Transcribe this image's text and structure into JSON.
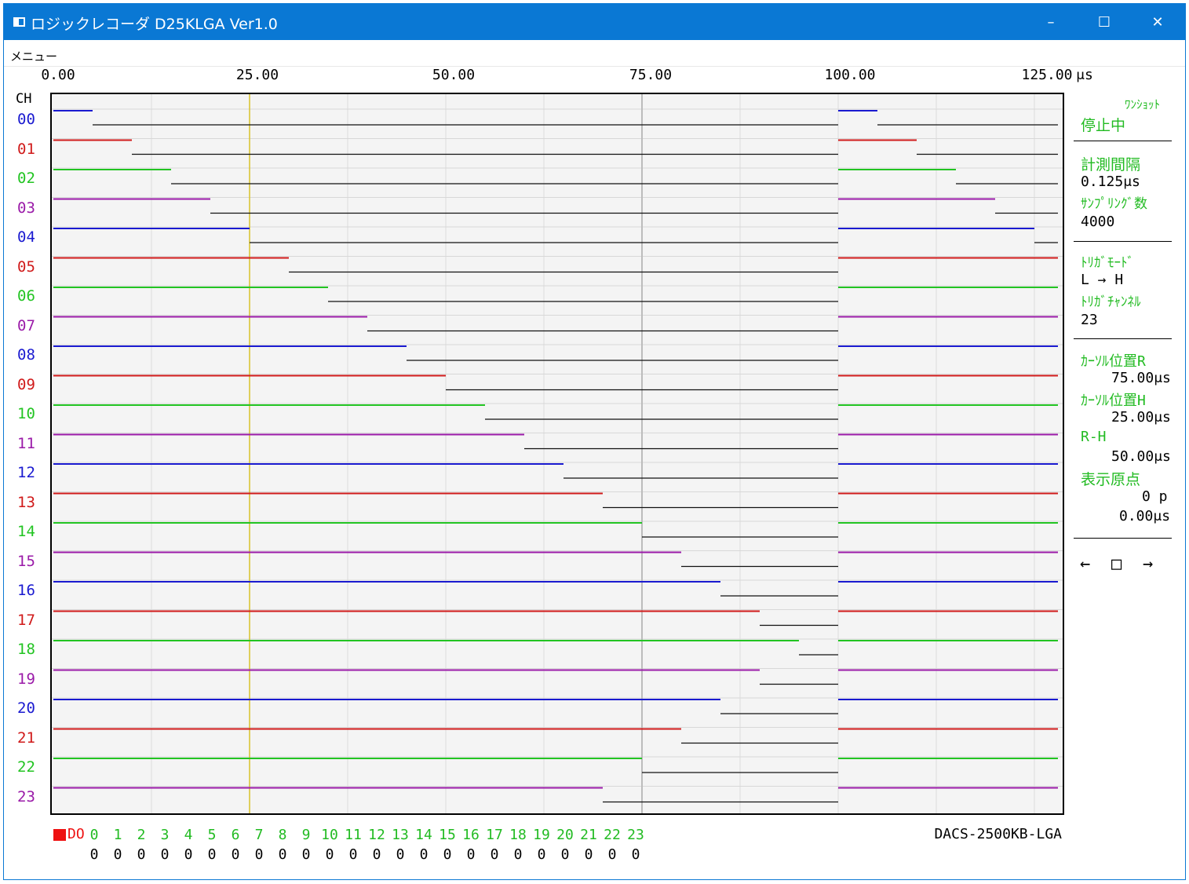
{
  "window": {
    "title": "ロジックレコーダ D25KLGA Ver1.0",
    "controls": {
      "minimize": "–",
      "maximize": "☐",
      "close": "✕"
    }
  },
  "menu": {
    "label": "メニュー"
  },
  "ruler": {
    "labels": [
      "0.00",
      "25.00",
      "50.00",
      "75.00",
      "100.00",
      "125.00"
    ],
    "unit": "μs",
    "ch_header": "CH"
  },
  "channels": [
    "00",
    "01",
    "02",
    "03",
    "04",
    "05",
    "06",
    "07",
    "08",
    "09",
    "10",
    "11",
    "12",
    "13",
    "14",
    "15",
    "16",
    "17",
    "18",
    "19",
    "20",
    "21",
    "22",
    "23"
  ],
  "colors": {
    "blue": "#1a1ad0",
    "red": "#d01a1a",
    "green": "#22c422",
    "purple": "#9a1aa8",
    "cursor_h": "#d8c22a",
    "cursor_r": "#bcbcbc",
    "accent": "#22bb22",
    "titlebar": "#0a78d4"
  },
  "waveforms": {
    "x_unit": "μs",
    "high_until": [
      5,
      10,
      15,
      20,
      25,
      30,
      35,
      40,
      45,
      50,
      55,
      60,
      65,
      70,
      75,
      80,
      85,
      90,
      95,
      90,
      85,
      80,
      75,
      70
    ],
    "period": 100,
    "x_max": 128
  },
  "cursors": {
    "H": 25.0,
    "R": 75.0
  },
  "side": {
    "mode": "ﾜﾝｼｮｯﾄ",
    "status": "停止中",
    "interval_label": "計測間隔",
    "interval_value": "0.125",
    "sampling_label": "ｻﾝﾌﾟﾘﾝｸﾞ数",
    "sampling_value": "4000",
    "trigger_mode_label": "ﾄﾘｶﾞﾓｰﾄﾞ",
    "trigger_mode_value": "L → H",
    "trigger_ch_label": "ﾄﾘｶﾞﾁｬﾝﾈﾙ",
    "trigger_ch_value": "23",
    "cursor_r_label": "ｶｰｿﾙ位置R",
    "cursor_r_value": "75.00",
    "cursor_h_label": "ｶｰｿﾙ位置H",
    "cursor_h_value": "25.00",
    "rh_label": "R-H",
    "rh_value": "50.00",
    "origin_label": "表示原点",
    "origin_p": "0 p",
    "origin_value": "0.00",
    "unit": "μs",
    "nav_left": "←",
    "nav_stop": "□",
    "nav_right": "→"
  },
  "do_panel": {
    "label": "DO",
    "bits": [
      "0",
      "1",
      "2",
      "3",
      "4",
      "5",
      "6",
      "7",
      "8",
      "9",
      "10",
      "11",
      "12",
      "13",
      "14",
      "15",
      "16",
      "17",
      "18",
      "19",
      "20",
      "21",
      "22",
      "23"
    ],
    "values": [
      "0",
      "0",
      "0",
      "0",
      "0",
      "0",
      "0",
      "0",
      "0",
      "0",
      "0",
      "0",
      "0",
      "0",
      "0",
      "0",
      "0",
      "0",
      "0",
      "0",
      "0",
      "0",
      "0",
      "0"
    ]
  },
  "device": "DACS-2500KB-LGA"
}
